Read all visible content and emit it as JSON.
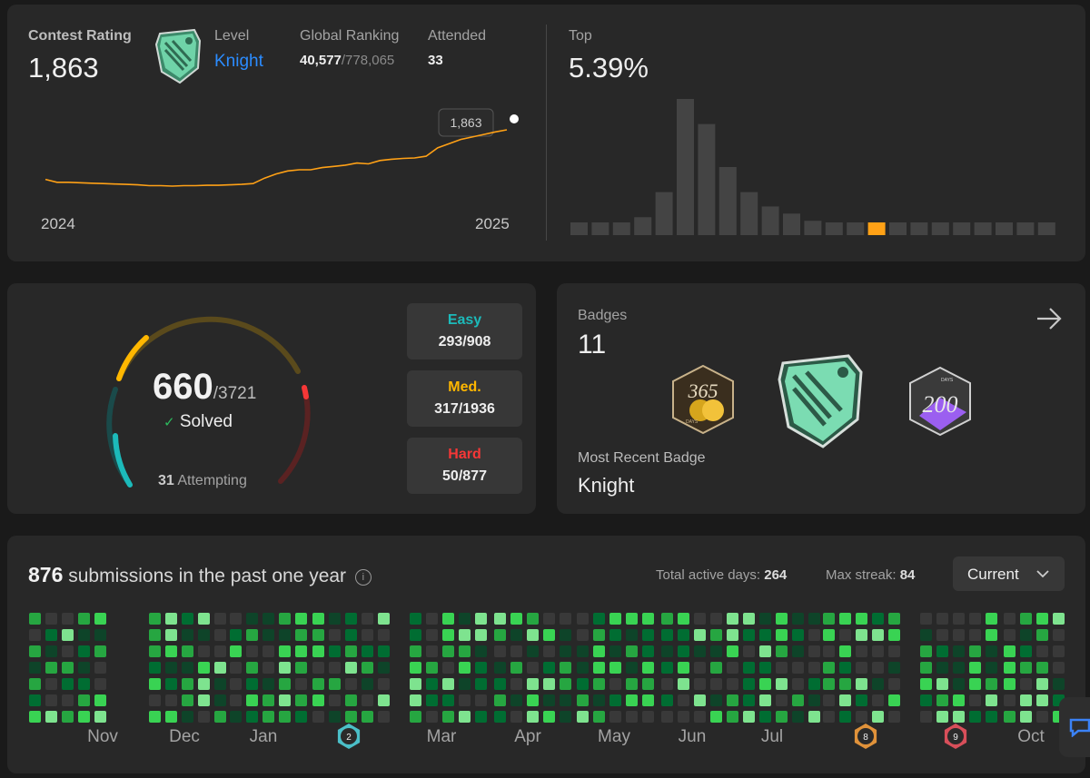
{
  "contest": {
    "rating_label": "Contest Rating",
    "rating_value": "1,863",
    "level_label": "Level",
    "level_value": "Knight",
    "global_label": "Global Ranking",
    "global_rank": "40,577",
    "global_total": "/778,065",
    "attended_label": "Attended",
    "attended_value": "33",
    "tooltip": "1,863",
    "year_start": "2024",
    "year_end": "2025",
    "top_label": "Top",
    "top_value": "5.39%",
    "rating_history": [
      1745,
      1738,
      1738,
      1737,
      1736,
      1735,
      1734,
      1733,
      1732,
      1730,
      1730,
      1729,
      1730,
      1730,
      1731,
      1731,
      1732,
      1733,
      1735,
      1748,
      1758,
      1765,
      1768,
      1768,
      1773,
      1776,
      1779,
      1784,
      1782,
      1790,
      1793,
      1795,
      1796,
      1800,
      1820,
      1830,
      1840,
      1846,
      1852,
      1858,
      1863
    ],
    "distribution": [
      3,
      3,
      3,
      5,
      12,
      38,
      31,
      19,
      12,
      8,
      6,
      4,
      3,
      3,
      3,
      3,
      3,
      3,
      3,
      3,
      3,
      3,
      3
    ],
    "distribution_highlight_index": 14,
    "accent_color": "#ffa116"
  },
  "solved": {
    "count": "660",
    "total": "/3721",
    "check_icon": "check-icon",
    "solved_label": "Solved",
    "attempting_count": "31",
    "attempting_label": "Attempting",
    "easy_label": "Easy",
    "easy_value": "293/908",
    "medium_label": "Med.",
    "medium_value": "317/1936",
    "hard_label": "Hard",
    "hard_value": "50/877",
    "easy_color": "#1cbaba",
    "medium_color": "#ffb700",
    "hard_color": "#f63737"
  },
  "badges": {
    "label": "Badges",
    "count": "11",
    "arrow_icon": "arrow-right-icon",
    "recent_label": "Most Recent Badge",
    "recent_value": "Knight",
    "badge1_text": "365",
    "badge1_sub": "DAYS",
    "badge3_text": "200",
    "badge3_sub": "DAYS"
  },
  "heatmap": {
    "count": "876",
    "title": "submissions in the past one year",
    "info_icon": "info-icon",
    "active_label": "Total active days:",
    "active_value": "264",
    "streak_label": "Max streak:",
    "streak_value": "84",
    "dropdown_value": "Current",
    "months": [
      "Nov",
      "Dec",
      "Jan",
      "Mar",
      "Apr",
      "May",
      "Jun",
      "Jul",
      "Oct"
    ],
    "month_badges": [
      "2",
      "8",
      "9"
    ],
    "active_colors": [
      "#0e4429",
      "#006d32",
      "#26a641",
      "#39d353",
      "#7ee38f"
    ],
    "empty_color": "#393939"
  }
}
